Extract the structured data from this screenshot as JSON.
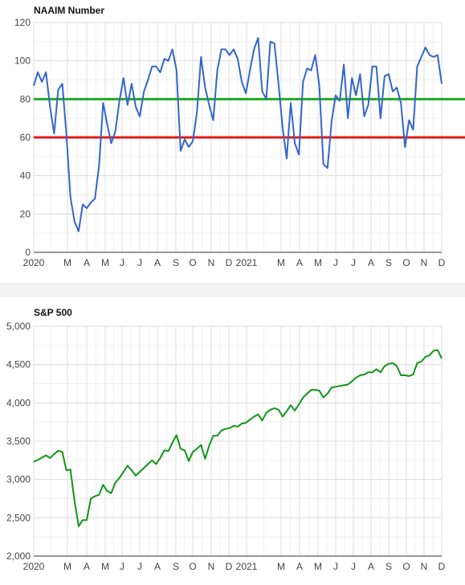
{
  "chart_data": [
    {
      "type": "line",
      "title": "NAAIM Number",
      "ylim": [
        0,
        120
      ],
      "yticks": [
        "0",
        "20",
        "40",
        "60",
        "80",
        "100",
        "120"
      ],
      "xticks": [
        "2020",
        "M",
        "A",
        "M",
        "J",
        "J",
        "A",
        "S",
        "O",
        "N",
        "D",
        "2021",
        "M",
        "A",
        "M",
        "J",
        "J",
        "A",
        "S",
        "O",
        "N",
        "D"
      ],
      "grid": true,
      "reference_lines": [
        {
          "value": 80,
          "color": "#22aa22"
        },
        {
          "value": 60,
          "color": "#e01b1b"
        }
      ],
      "series": [
        {
          "color": "#3366cc",
          "values": [
            87,
            94,
            89,
            94,
            76,
            62,
            85,
            88,
            62,
            29,
            16,
            11,
            25,
            23,
            26,
            28,
            45,
            78,
            67,
            57,
            63,
            79,
            91,
            77,
            88,
            76,
            71,
            84,
            90,
            97,
            97,
            94,
            101,
            100,
            106,
            95,
            53,
            59,
            55,
            58,
            73,
            102,
            86,
            77,
            69,
            95,
            106,
            106,
            103,
            106,
            101,
            89,
            83,
            95,
            106,
            112,
            84,
            80,
            110,
            109,
            88,
            65,
            49,
            78,
            57,
            51,
            89,
            96,
            95,
            103,
            87,
            46,
            44,
            68,
            82,
            79,
            98,
            70,
            91,
            82,
            93,
            71,
            77,
            97,
            97,
            70,
            92,
            93,
            84,
            86,
            78,
            55,
            69,
            64,
            97,
            102,
            107,
            103,
            102,
            103,
            88
          ]
        }
      ]
    },
    {
      "type": "line",
      "title": "S&P 500",
      "ylim": [
        2000,
        5000
      ],
      "yticks": [
        "2,000",
        "2,500",
        "3,000",
        "3,500",
        "4,000",
        "4,500",
        "5,000"
      ],
      "xticks": [
        "2020",
        "M",
        "A",
        "M",
        "J",
        "J",
        "A",
        "S",
        "O",
        "N",
        "D",
        "2021",
        "M",
        "A",
        "M",
        "J",
        "J",
        "A",
        "S",
        "O",
        "N",
        "D"
      ],
      "grid": true,
      "series": [
        {
          "color": "#109618",
          "values": [
            3230,
            3255,
            3285,
            3315,
            3280,
            3330,
            3375,
            3360,
            3120,
            3130,
            2720,
            2390,
            2470,
            2470,
            2750,
            2780,
            2800,
            2930,
            2850,
            2820,
            2960,
            3020,
            3100,
            3180,
            3120,
            3050,
            3100,
            3150,
            3200,
            3250,
            3200,
            3280,
            3380,
            3370,
            3480,
            3580,
            3400,
            3380,
            3240,
            3360,
            3400,
            3450,
            3270,
            3440,
            3570,
            3570,
            3640,
            3660,
            3670,
            3700,
            3690,
            3730,
            3740,
            3780,
            3820,
            3850,
            3770,
            3870,
            3910,
            3930,
            3910,
            3820,
            3890,
            3970,
            3900,
            3980,
            4070,
            4120,
            4170,
            4170,
            4160,
            4070,
            4120,
            4200,
            4210,
            4220,
            4230,
            4240,
            4280,
            4330,
            4360,
            4370,
            4400,
            4400,
            4440,
            4400,
            4480,
            4510,
            4520,
            4480,
            4360,
            4360,
            4350,
            4370,
            4520,
            4540,
            4600,
            4620,
            4680,
            4690,
            4580
          ]
        }
      ]
    }
  ]
}
